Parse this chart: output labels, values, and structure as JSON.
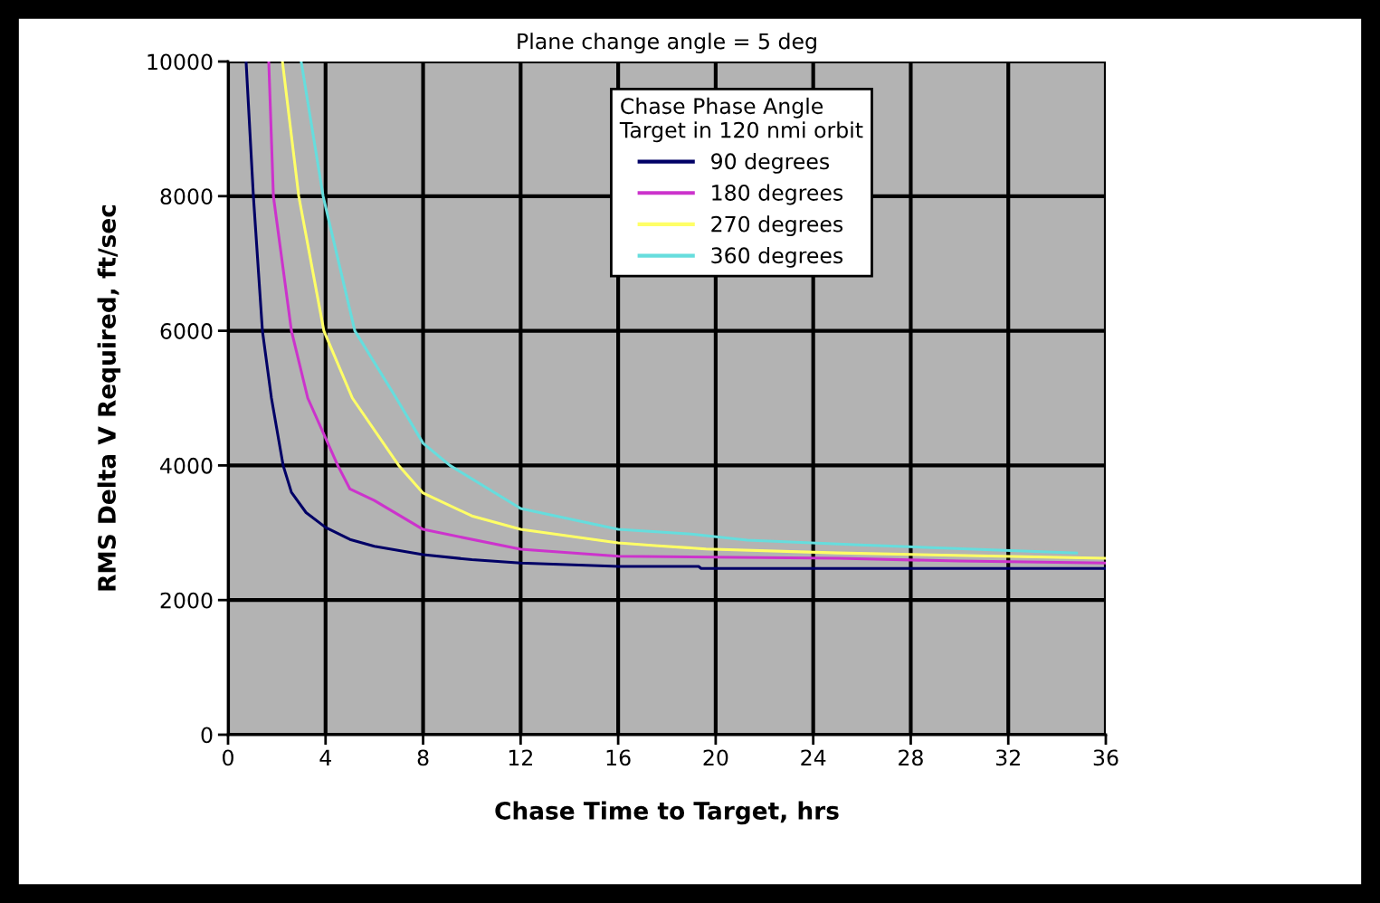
{
  "chart_data": {
    "type": "line",
    "title": "Plane change angle = 5 deg",
    "xlabel": "Chase Time to Target, hrs",
    "ylabel": "RMS Delta V Required, ft/sec",
    "legend_title": "Chase Phase Angle\nTarget in 120 nmi orbit",
    "legend": "top",
    "grid": true,
    "marker": "none",
    "line_style": "solid",
    "xlim": [
      0,
      36
    ],
    "xticks": [
      0,
      4,
      8,
      12,
      16,
      20,
      24,
      28,
      32,
      36
    ],
    "ylim": [
      0,
      10000
    ],
    "yticks": [
      0,
      2000,
      4000,
      6000,
      8000,
      10000
    ],
    "series": [
      {
        "name": "90 degrees",
        "color": "#000066",
        "x": [
          0.74,
          1.04,
          1.41,
          1.78,
          2.26,
          2.6,
          3.2,
          4,
          5,
          6,
          8,
          10,
          12,
          16,
          19.3,
          19.4,
          36
        ],
        "values": [
          10000,
          8000,
          6000,
          5000,
          4000,
          3600,
          3300,
          3080,
          2900,
          2800,
          2675,
          2600,
          2550,
          2500,
          2500,
          2470,
          2470
        ]
      },
      {
        "name": "180 degrees",
        "color": "#cc33cc",
        "x": [
          1.67,
          1.86,
          2.6,
          3.27,
          4.5,
          5,
          6,
          8,
          12,
          16,
          25,
          30,
          36
        ],
        "values": [
          10000,
          8000,
          6000,
          5000,
          4000,
          3650,
          3480,
          3050,
          2755,
          2650,
          2620,
          2580,
          2550
        ]
      },
      {
        "name": "270 degrees",
        "color": "#ffff66",
        "x": [
          2.23,
          2.9,
          3.93,
          5.1,
          7.0,
          8,
          10,
          12,
          16,
          17.5,
          19.6,
          25,
          36
        ],
        "values": [
          10000,
          8000,
          6000,
          5000,
          4000,
          3590,
          3250,
          3050,
          2850,
          2810,
          2760,
          2700,
          2620
        ]
      },
      {
        "name": "360 degrees",
        "color": "#66dddd",
        "x": [
          3.0,
          3.9,
          5.2,
          6.9,
          8,
          9.1,
          12,
          16,
          19,
          21.3,
          25.9,
          34.8
        ],
        "values": [
          10000,
          8000,
          6000,
          5000,
          4330,
          4000,
          3360,
          3050,
          2980,
          2890,
          2820,
          2700
        ]
      }
    ]
  }
}
